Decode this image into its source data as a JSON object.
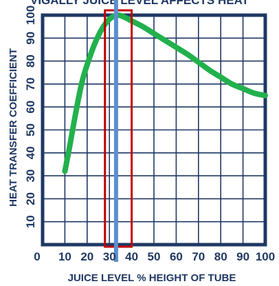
{
  "chart_data": {
    "type": "line",
    "title": "VIGALLY JUICE LEVEL AFFECTS HEAT",
    "xlabel": "JUICE LEVEL % HEIGHT OF TUBE",
    "ylabel": "HEAT TRANSFER COEFFICIENT",
    "xlim": [
      0,
      100
    ],
    "ylim": [
      0,
      100
    ],
    "x_ticks": [
      "0",
      "10",
      "20",
      "30",
      "40",
      "50",
      "60",
      "70",
      "80",
      "90",
      "100"
    ],
    "y_ticks": [
      "10",
      "20",
      "30",
      "40",
      "50",
      "60",
      "70",
      "80",
      "90",
      "100"
    ],
    "grid": true,
    "series": [
      {
        "x": [
          10,
          12,
          15,
          18,
          22,
          25,
          28,
          31,
          34,
          37,
          40,
          45,
          50,
          55,
          60,
          65,
          70,
          75,
          80,
          85,
          90,
          95,
          100
        ],
        "y": [
          32,
          42,
          58,
          72,
          84,
          91,
          96,
          99,
          100,
          99,
          97.5,
          95,
          92,
          89,
          86,
          83,
          79.5,
          76,
          73,
          70,
          68,
          66,
          65
        ],
        "color": "#22b14c"
      }
    ],
    "highlight_band": {
      "x_range": [
        28,
        40
      ],
      "color": "#c00000"
    },
    "marker_line": {
      "x": 33,
      "color": "#5b8fd1"
    },
    "colors": {
      "frame": "#1f3864",
      "grid": "#1f3864"
    }
  }
}
